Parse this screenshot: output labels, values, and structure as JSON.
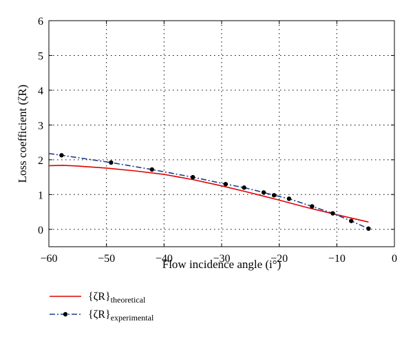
{
  "chart_data": {
    "type": "line",
    "xlabel": "Flow incidence angle (i°)",
    "ylabel": "Loss coefficient (ζR)",
    "xlim": [
      -60,
      0
    ],
    "ylim": [
      -0.5,
      6
    ],
    "xticks": [
      -60,
      -50,
      -40,
      -30,
      -20,
      -10,
      0
    ],
    "yticks": [
      0,
      1,
      2,
      3,
      4,
      5,
      6
    ],
    "xtick_labels": [
      "−60",
      "−50",
      "−40",
      "−30",
      "−20",
      "−10",
      "0"
    ],
    "ytick_labels": [
      "0",
      "1",
      "2",
      "3",
      "4",
      "5",
      "6"
    ],
    "grid": true,
    "legend_position": "below",
    "series": [
      {
        "name": "{ζR}theoretical",
        "name_main": "{ζR}",
        "name_sub": "theoretical",
        "color": "#e00000",
        "style": "solid",
        "x": [
          -60,
          -57.5,
          -55,
          -50,
          -45,
          -40,
          -35,
          -30,
          -25,
          -20,
          -15,
          -10,
          -4.5
        ],
        "y": [
          1.83,
          1.84,
          1.82,
          1.76,
          1.68,
          1.58,
          1.43,
          1.25,
          1.05,
          0.84,
          0.62,
          0.42,
          0.21
        ]
      },
      {
        "name": "{ζR}experimental",
        "name_main": "{ζR}",
        "name_sub": "experimental",
        "color": "#1f3a8a",
        "style": "dashdot",
        "marker": "dot",
        "x": [
          -60,
          -57.8,
          -49.2,
          -42.1,
          -35,
          -29.3,
          -26.1,
          -22.7,
          -20.9,
          -18.3,
          -14.3,
          -10.7,
          -7.5,
          -4.5
        ],
        "y": [
          2.18,
          2.13,
          1.92,
          1.72,
          1.5,
          1.3,
          1.2,
          1.06,
          0.98,
          0.88,
          0.66,
          0.46,
          0.24,
          0.02
        ]
      }
    ]
  }
}
